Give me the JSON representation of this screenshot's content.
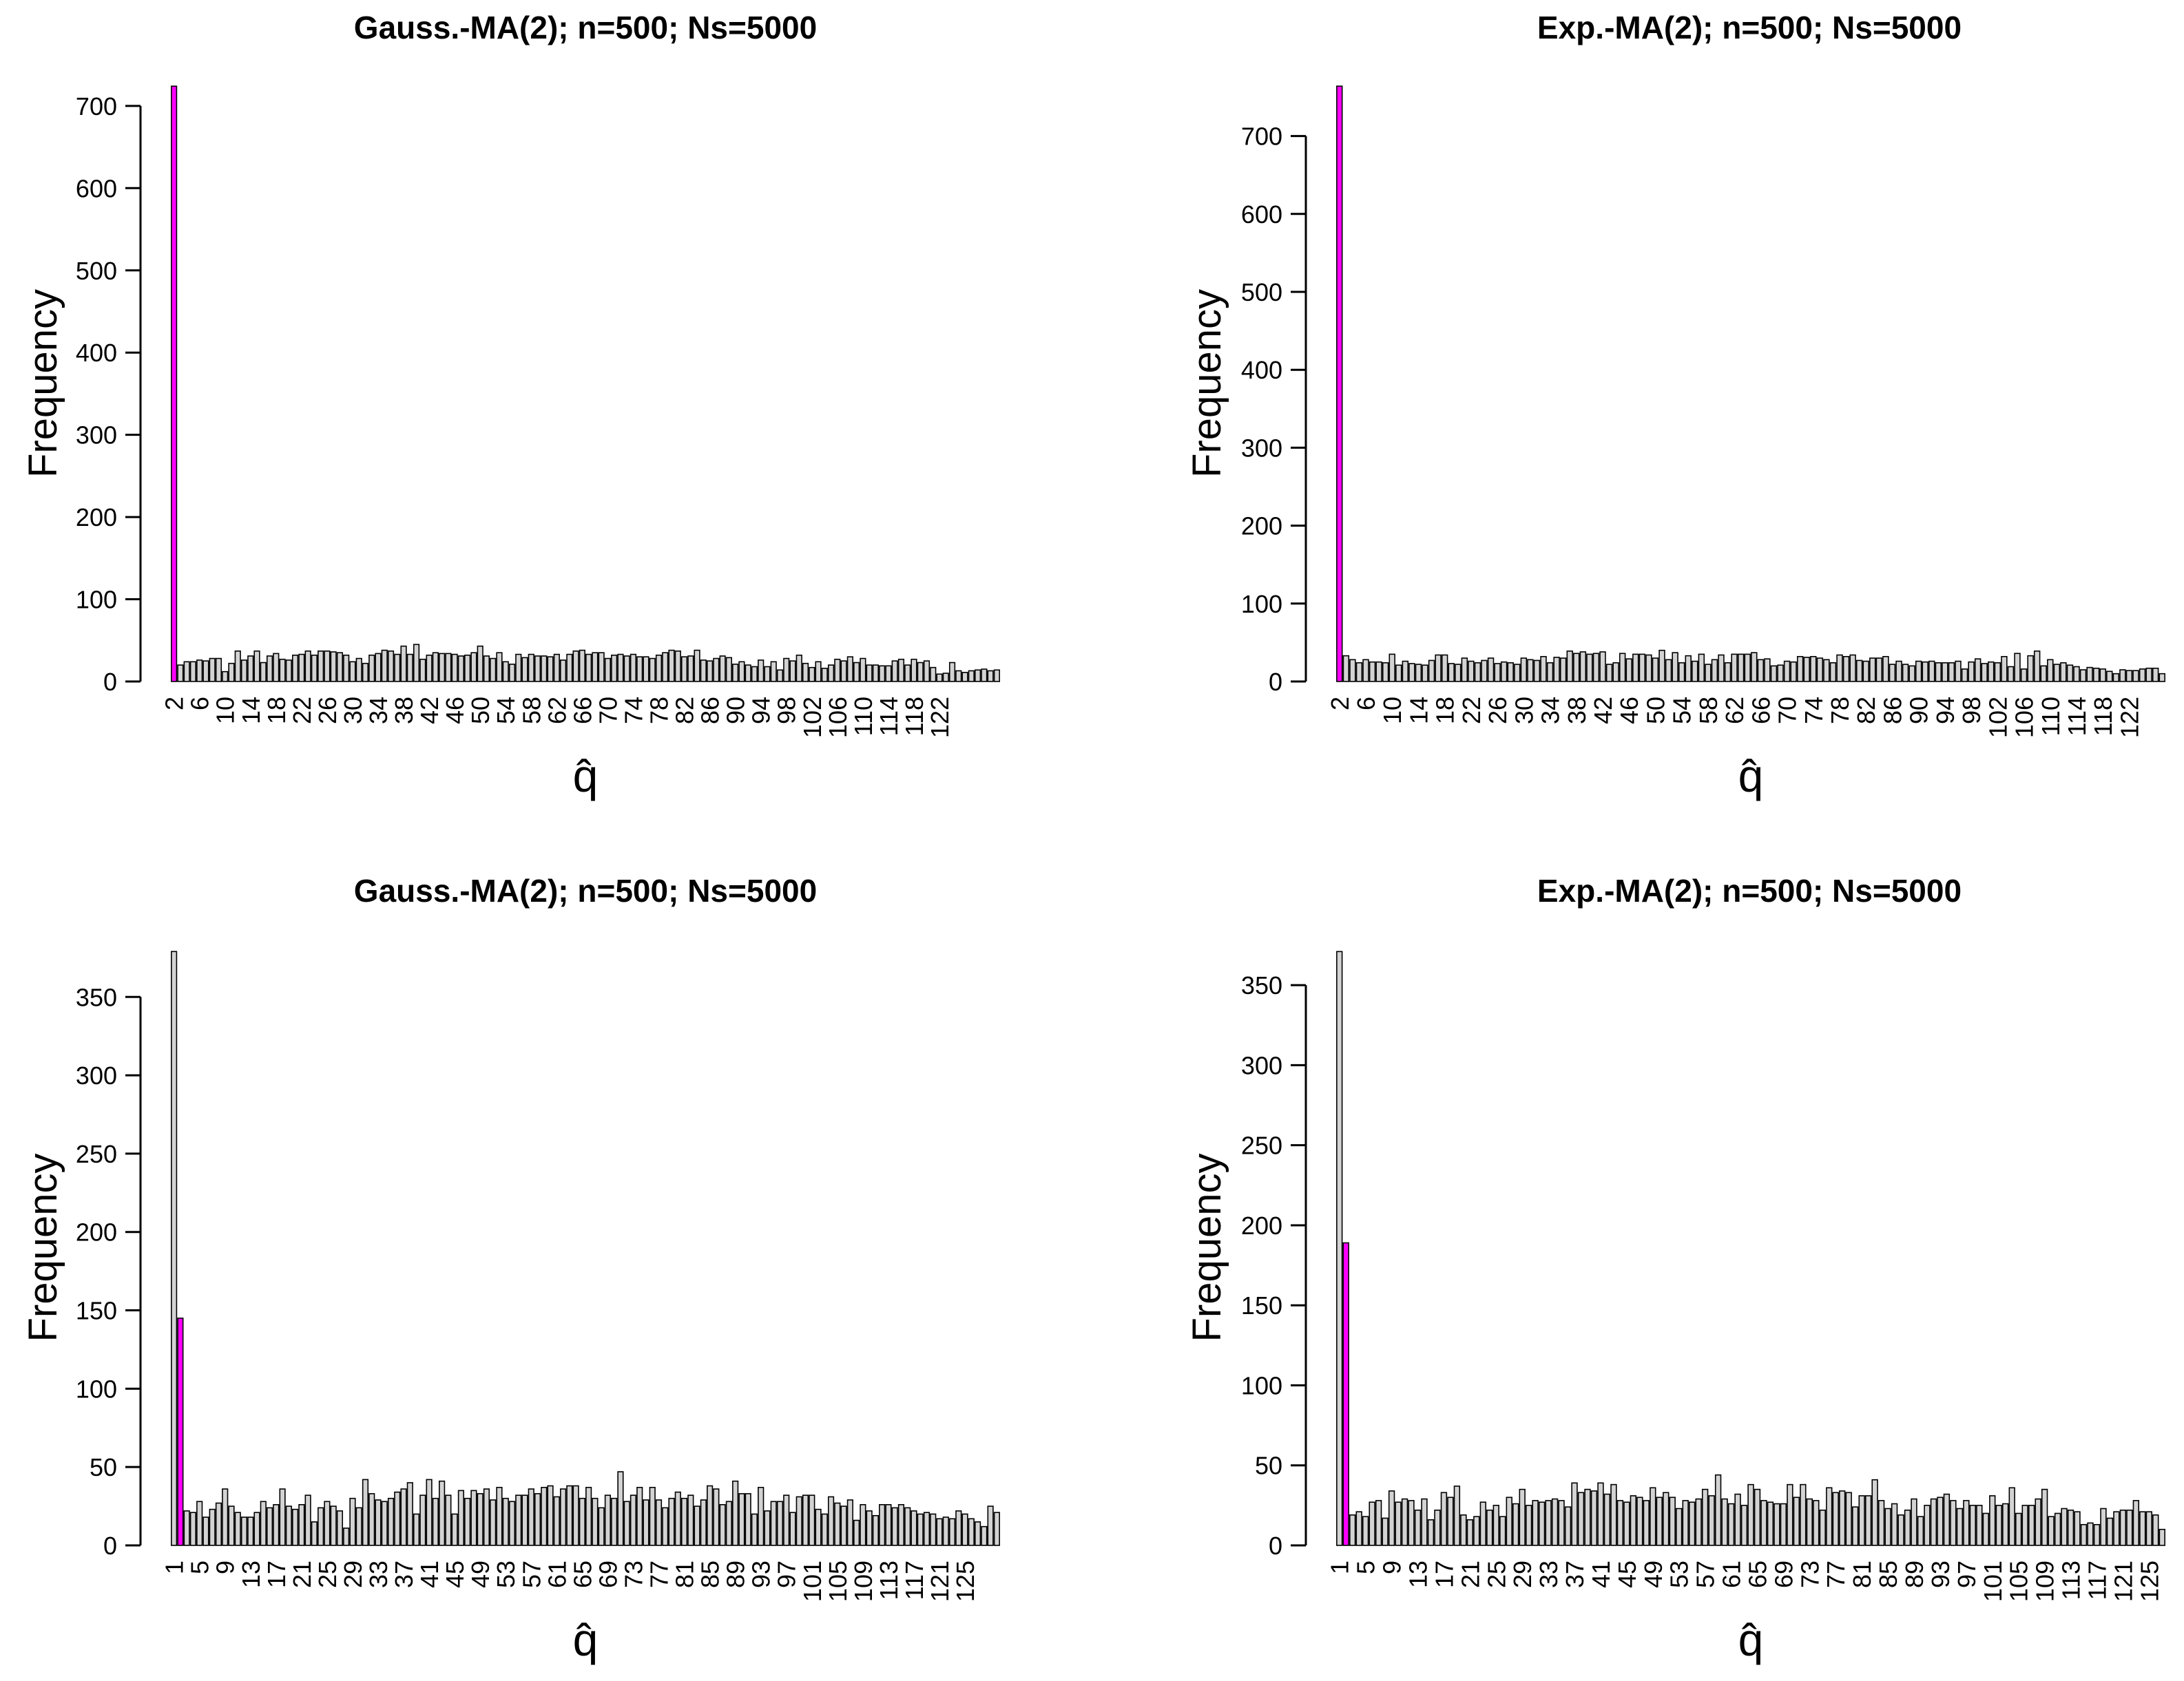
{
  "figure": {
    "colors": {
      "bar": "#d3d3d3",
      "highlight": "#ff00ff",
      "stroke": "#000000"
    }
  },
  "chart_data": [
    {
      "type": "bar",
      "title": "Gauss.-MA(2);  n=500;  Ns=5000",
      "xlabel": "q̂",
      "ylabel": "Frequency",
      "ylim": [
        0,
        725
      ],
      "yticks": [
        0,
        100,
        200,
        300,
        400,
        500,
        600,
        700
      ],
      "x_start": 2,
      "x_step": 4,
      "x_tick_labels": [
        "2",
        "6",
        "10",
        "14",
        "18",
        "22",
        "26",
        "30",
        "34",
        "38",
        "42",
        "46",
        "50",
        "54",
        "58",
        "62",
        "66",
        "70",
        "74",
        "78",
        "82",
        "86",
        "90",
        "94",
        "98",
        "102",
        "106",
        "110",
        "114",
        "118",
        "122"
      ],
      "highlight_index": 0,
      "values": [
        724,
        20,
        24,
        24,
        26,
        25,
        28,
        28,
        12,
        22,
        37,
        26,
        31,
        37,
        23,
        31,
        34,
        27,
        26,
        32,
        33,
        37,
        32,
        37,
        37,
        36,
        35,
        32,
        24,
        28,
        22,
        32,
        34,
        38,
        37,
        33,
        43,
        33,
        45,
        27,
        32,
        35,
        34,
        34,
        33,
        31,
        32,
        35,
        43,
        31,
        28,
        35,
        24,
        21,
        33,
        29,
        33,
        31,
        31,
        30,
        33,
        26,
        33,
        37,
        38,
        33,
        35,
        35,
        28,
        32,
        33,
        31,
        33,
        30,
        30,
        28,
        32,
        35,
        38,
        37,
        30,
        31,
        38,
        26,
        25,
        28,
        31,
        29,
        21,
        24,
        20,
        18,
        26,
        18,
        24,
        14,
        28,
        25,
        32,
        22,
        17,
        24,
        16,
        20,
        27,
        25,
        30,
        23,
        28,
        20,
        20,
        19,
        19,
        25,
        27,
        20,
        27,
        23,
        25,
        17,
        9,
        10,
        23,
        13,
        11,
        13,
        14,
        15,
        13,
        14
      ]
    },
    {
      "type": "bar",
      "title": "Exp.-MA(2);  n=500;  Ns=5000",
      "xlabel": "q̂",
      "ylabel": "Frequency",
      "ylim": [
        0,
        765
      ],
      "yticks": [
        0,
        100,
        200,
        300,
        400,
        500,
        600,
        700
      ],
      "x_start": 2,
      "x_step": 4,
      "x_tick_labels": [
        "2",
        "6",
        "10",
        "14",
        "18",
        "22",
        "26",
        "30",
        "34",
        "38",
        "42",
        "46",
        "50",
        "54",
        "58",
        "62",
        "66",
        "70",
        "74",
        "78",
        "82",
        "86",
        "90",
        "94",
        "98",
        "102",
        "106",
        "110",
        "114",
        "118",
        "122"
      ],
      "highlight_index": 0,
      "values": [
        764,
        33,
        28,
        24,
        28,
        25,
        25,
        24,
        35,
        21,
        26,
        23,
        22,
        21,
        27,
        34,
        34,
        23,
        22,
        30,
        26,
        24,
        27,
        30,
        23,
        25,
        24,
        22,
        30,
        28,
        27,
        32,
        24,
        31,
        30,
        39,
        36,
        38,
        35,
        36,
        38,
        22,
        24,
        36,
        29,
        35,
        35,
        34,
        30,
        40,
        28,
        37,
        24,
        33,
        26,
        35,
        22,
        28,
        34,
        24,
        35,
        35,
        35,
        37,
        28,
        29,
        20,
        21,
        26,
        25,
        32,
        31,
        32,
        30,
        28,
        24,
        34,
        32,
        34,
        27,
        26,
        30,
        30,
        32,
        22,
        26,
        22,
        20,
        26,
        25,
        26,
        24,
        24,
        24,
        26,
        16,
        25,
        29,
        23,
        25,
        24,
        32,
        19,
        36,
        16,
        33,
        39,
        20,
        28,
        22,
        24,
        21,
        19,
        15,
        18,
        17,
        16,
        13,
        10,
        15,
        14,
        14,
        16,
        17,
        17,
        10
      ]
    },
    {
      "type": "bar",
      "title": "Gauss.-MA(2);  n=500;  Ns=5000",
      "xlabel": "q̂",
      "ylabel": "Frequency",
      "ylim": [
        0,
        380
      ],
      "yticks": [
        0,
        50,
        100,
        150,
        200,
        250,
        300,
        350
      ],
      "x_start": 1,
      "x_step": 4,
      "x_tick_labels": [
        "1",
        "5",
        "9",
        "13",
        "17",
        "21",
        "25",
        "29",
        "33",
        "37",
        "41",
        "45",
        "49",
        "53",
        "57",
        "61",
        "65",
        "69",
        "73",
        "77",
        "81",
        "85",
        "89",
        "93",
        "97",
        "101",
        "105",
        "109",
        "113",
        "117",
        "121",
        "125"
      ],
      "highlight_index": 1,
      "values": [
        379,
        145,
        22,
        21,
        28,
        18,
        23,
        27,
        36,
        25,
        21,
        18,
        18,
        21,
        28,
        24,
        26,
        36,
        25,
        23,
        26,
        32,
        15,
        24,
        28,
        25,
        22,
        11,
        30,
        24,
        42,
        33,
        29,
        28,
        30,
        34,
        36,
        40,
        20,
        32,
        42,
        30,
        41,
        32,
        20,
        35,
        30,
        35,
        33,
        36,
        29,
        37,
        30,
        28,
        32,
        32,
        36,
        33,
        37,
        38,
        31,
        36,
        38,
        38,
        30,
        37,
        30,
        24,
        32,
        30,
        47,
        28,
        32,
        37,
        29,
        37,
        29,
        24,
        30,
        34,
        30,
        32,
        25,
        29,
        38,
        36,
        26,
        28,
        41,
        33,
        33,
        20,
        37,
        22,
        28,
        28,
        32,
        21,
        31,
        32,
        32,
        23,
        20,
        31,
        27,
        25,
        29,
        16,
        26,
        22,
        19,
        26,
        26,
        24,
        26,
        24,
        22,
        20,
        21,
        20,
        17,
        18,
        17,
        22,
        20,
        17,
        15,
        12,
        25,
        21
      ]
    },
    {
      "type": "bar",
      "title": "Exp.-MA(2);  n=500;  Ns=5000",
      "xlabel": "q̂",
      "ylabel": "Frequency",
      "ylim": [
        0,
        372
      ],
      "yticks": [
        0,
        50,
        100,
        150,
        200,
        250,
        300,
        350
      ],
      "x_start": 1,
      "x_step": 4,
      "x_tick_labels": [
        "1",
        "5",
        "9",
        "13",
        "17",
        "21",
        "25",
        "29",
        "33",
        "37",
        "41",
        "45",
        "49",
        "53",
        "57",
        "61",
        "65",
        "69",
        "73",
        "77",
        "81",
        "85",
        "89",
        "93",
        "97",
        "101",
        "105",
        "109",
        "113",
        "117",
        "121",
        "125"
      ],
      "highlight_index": 1,
      "values": [
        371,
        189,
        19,
        21,
        18,
        27,
        28,
        17,
        34,
        27,
        29,
        28,
        22,
        29,
        16,
        22,
        33,
        30,
        37,
        19,
        16,
        18,
        27,
        22,
        25,
        18,
        30,
        26,
        35,
        25,
        28,
        27,
        28,
        29,
        28,
        24,
        39,
        33,
        35,
        34,
        39,
        32,
        38,
        28,
        27,
        31,
        30,
        28,
        36,
        30,
        33,
        30,
        23,
        28,
        27,
        29,
        35,
        31,
        44,
        29,
        26,
        32,
        25,
        38,
        35,
        28,
        27,
        26,
        26,
        38,
        30,
        38,
        29,
        28,
        22,
        36,
        33,
        34,
        33,
        24,
        31,
        31,
        41,
        28,
        23,
        26,
        19,
        22,
        29,
        18,
        25,
        29,
        30,
        32,
        28,
        23,
        28,
        25,
        25,
        20,
        31,
        25,
        26,
        36,
        20,
        25,
        25,
        29,
        35,
        18,
        20,
        23,
        22,
        21,
        13,
        14,
        13,
        23,
        17,
        21,
        22,
        22,
        28,
        21,
        21,
        19,
        10
      ]
    }
  ]
}
